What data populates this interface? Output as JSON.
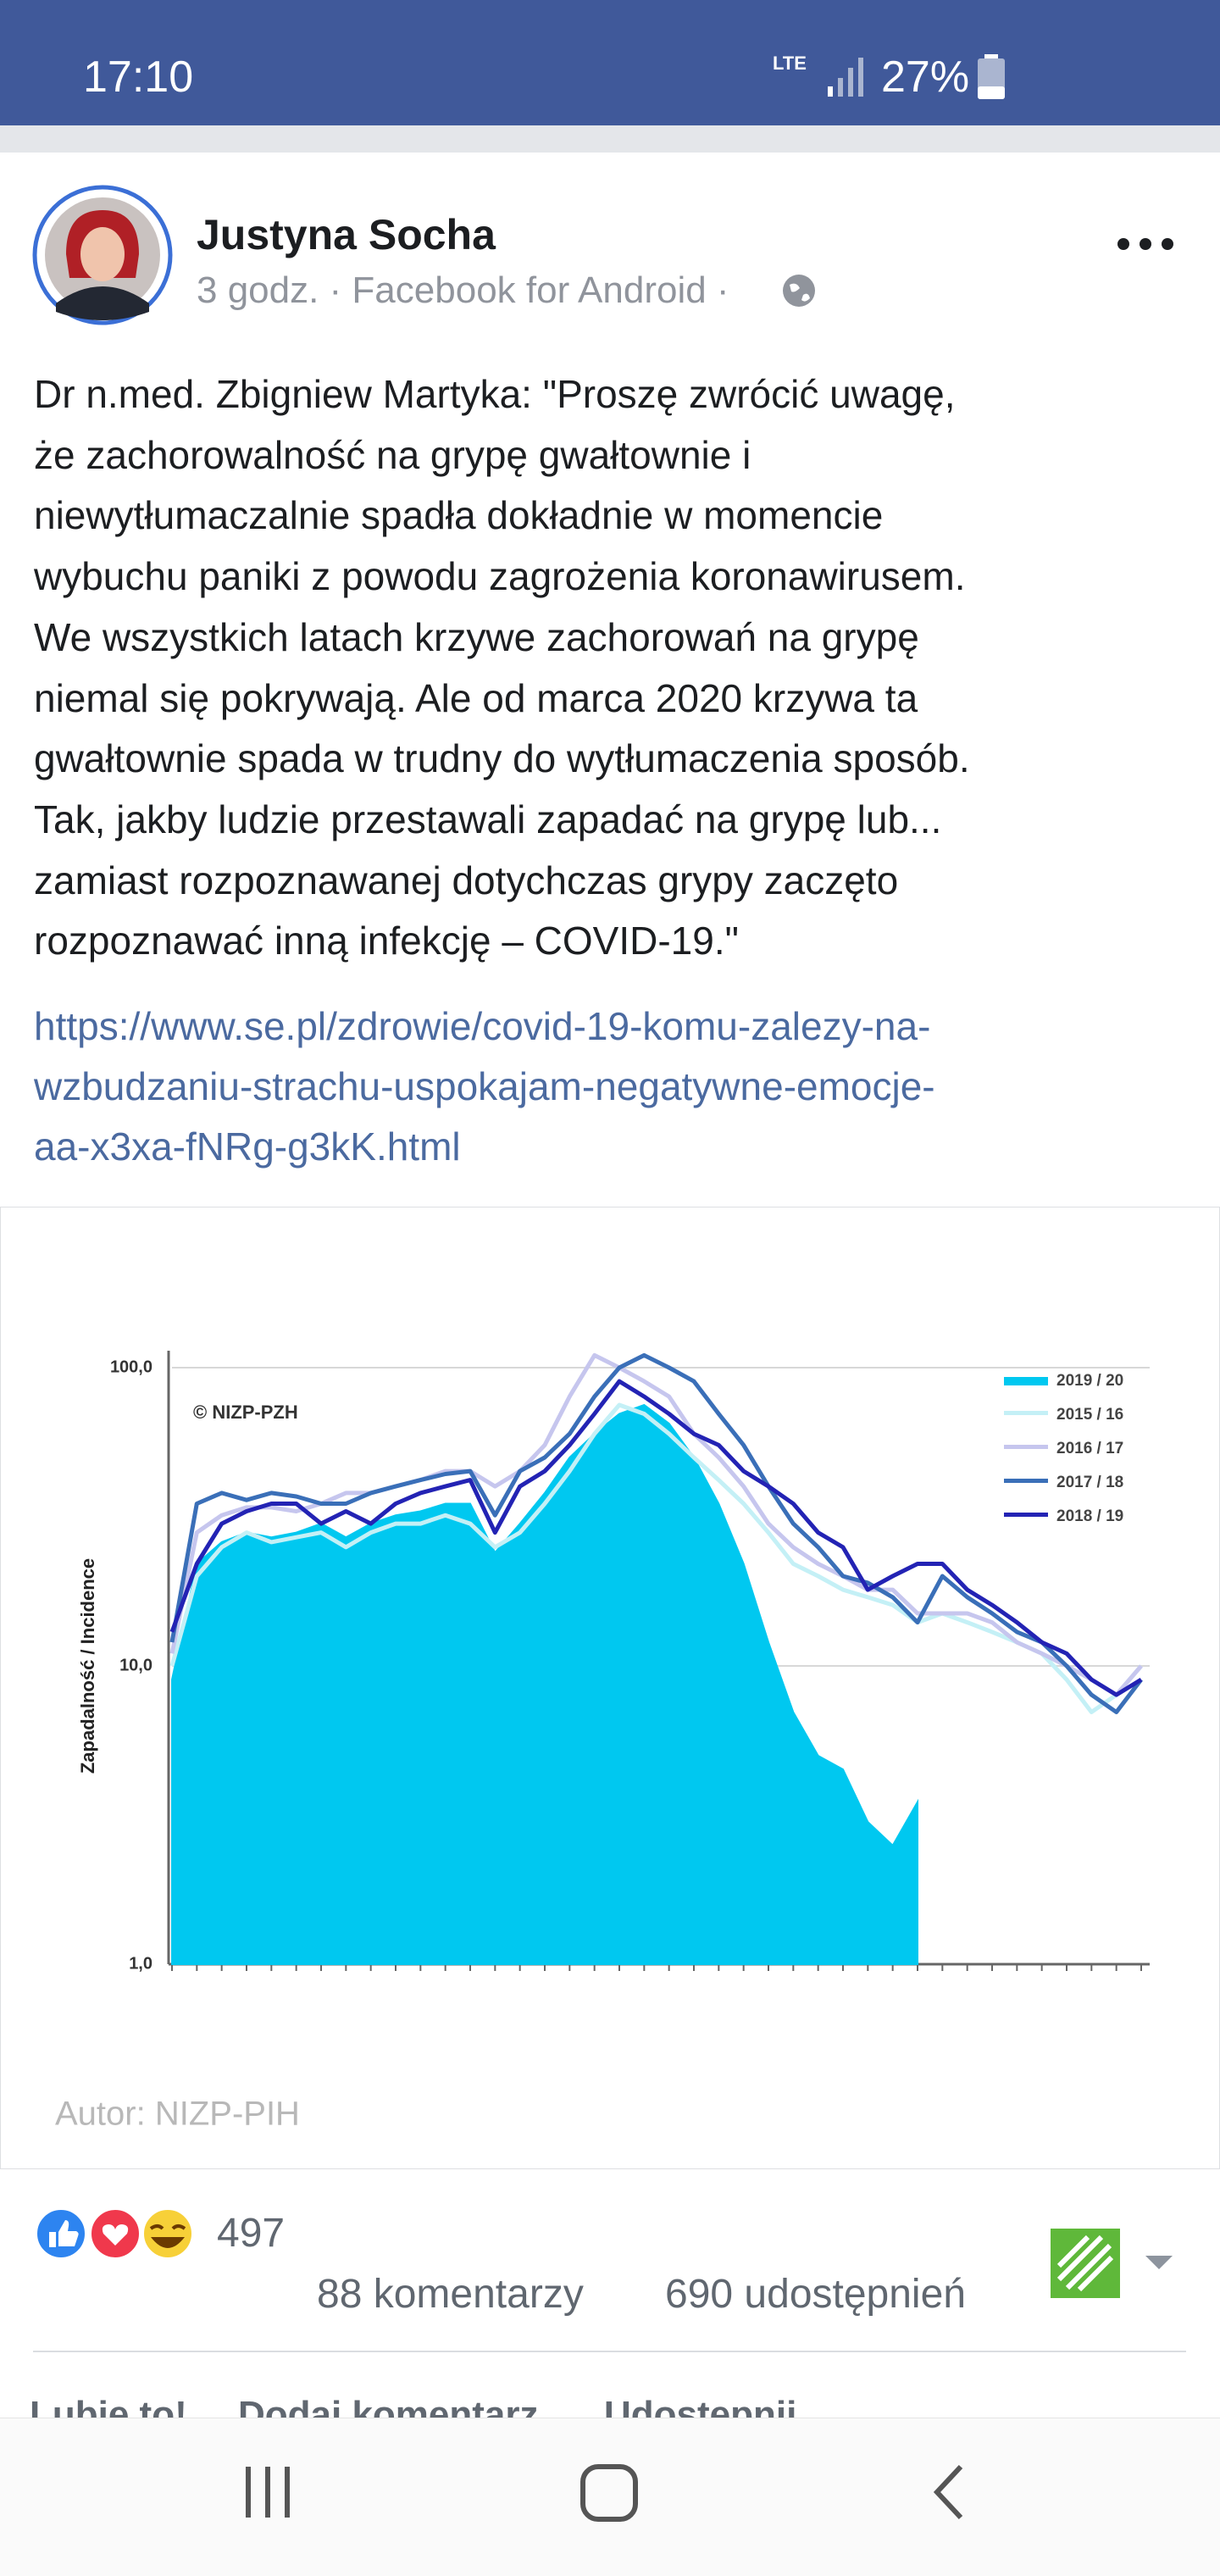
{
  "status_bar": {
    "time": "17:10",
    "network": "LTE",
    "battery": "27%"
  },
  "post": {
    "author": "Justyna Socha",
    "meta": "3 godz. · Facebook for Android ·",
    "text_lines": [
      "Dr n.med. Zbigniew Martyka: \"Proszę zwrócić uwagę,",
      "że zachorowalność na grypę gwałtownie i",
      "niewytłumaczalnie spadła dokładnie w momencie",
      "wybuchu paniki z powodu zagrożenia koronawirusem.",
      "We wszystkich latach krzywe zachorowań na grypę",
      "niemal się pokrywają. Ale od marca 2020 krzywa ta",
      "gwałtownie spada w trudny do wytłumaczenia sposób.",
      "Tak, jakby ludzie przestawali zapadać na grypę lub...",
      "zamiast rozpoznawanej dotychczas grypy zaczęto",
      "rozpoznawać inną infekcję – COVID-19.\""
    ],
    "link_lines": [
      "https://www.se.pl/zdrowie/covid-19-komu-zalezy-na-",
      "wzbudzaniu-strachu-uspokajam-negatywne-emocje-",
      "aa-x3xa-fNRg-g3kK.html"
    ]
  },
  "chart_data": {
    "type": "line",
    "log_y": true,
    "ylabel": "Zapadalność / Incidence",
    "watermark": "© NIZP-PZH",
    "credit": "Autor: NIZP-PIH",
    "categories": [
      null,
      null,
      null,
      null,
      null,
      null,
      null,
      null,
      null,
      null,
      null,
      null,
      null,
      null,
      null,
      null,
      null,
      null,
      null,
      null,
      null,
      null,
      null,
      null,
      null,
      null,
      null,
      null,
      null,
      null,
      null,
      null,
      null,
      null,
      null,
      null,
      null,
      null,
      null,
      null
    ],
    "ylim": [
      1,
      100
    ],
    "yticks": [
      {
        "value": 1,
        "label": "1,0"
      },
      {
        "value": 10,
        "label": "10,0"
      },
      {
        "value": 100,
        "label": "100,0"
      }
    ],
    "grid": true,
    "legend": "upper right",
    "series": [
      {
        "name": "2019 / 20",
        "color": "#00c8f0",
        "fill": true,
        "values": [
          9,
          22,
          26,
          28,
          27,
          28,
          30,
          27,
          30,
          32,
          33,
          35,
          35,
          24,
          30,
          38,
          50,
          60,
          70,
          75,
          65,
          50,
          35,
          22,
          12,
          7,
          5,
          4.5,
          3,
          2.5,
          3.5,
          null,
          null,
          null,
          null,
          null,
          null,
          null,
          null,
          null
        ]
      },
      {
        "name": "2015 / 16",
        "color": "#c4f0f6",
        "fill": false,
        "values": [
          10,
          20,
          25,
          28,
          26,
          27,
          28,
          25,
          28,
          30,
          30,
          32,
          30,
          25,
          28,
          35,
          45,
          60,
          75,
          70,
          60,
          50,
          42,
          35,
          28,
          22,
          20,
          18,
          17,
          16,
          14,
          15,
          14,
          13,
          12,
          11,
          9,
          7,
          8,
          10
        ]
      },
      {
        "name": "2016 / 17",
        "color": "#c6c6ee",
        "fill": false,
        "values": [
          11,
          28,
          32,
          34,
          34,
          33,
          35,
          38,
          38,
          40,
          42,
          45,
          45,
          40,
          45,
          55,
          80,
          110,
          100,
          90,
          80,
          60,
          50,
          40,
          30,
          25,
          22,
          20,
          18,
          18,
          15,
          15,
          15,
          14,
          12,
          11,
          10,
          9,
          8,
          10
        ]
      },
      {
        "name": "2017 / 18",
        "color": "#3a6fb8",
        "fill": false,
        "values": [
          12,
          35,
          38,
          36,
          38,
          37,
          35,
          35,
          38,
          40,
          42,
          44,
          45,
          32,
          45,
          50,
          60,
          80,
          100,
          110,
          100,
          90,
          70,
          55,
          40,
          30,
          25,
          20,
          19,
          17,
          14,
          20,
          17,
          15,
          13,
          12,
          10,
          8,
          7,
          9
        ]
      },
      {
        "name": "2018 / 19",
        "color": "#2323b4",
        "fill": false,
        "values": [
          13,
          22,
          30,
          33,
          35,
          35,
          30,
          33,
          30,
          35,
          38,
          40,
          42,
          28,
          40,
          45,
          55,
          70,
          90,
          80,
          70,
          60,
          55,
          45,
          40,
          35,
          28,
          25,
          18,
          20,
          22,
          22,
          18,
          16,
          14,
          12,
          11,
          9,
          8,
          9
        ]
      }
    ]
  },
  "reactions": {
    "count": 497,
    "comments": "88 komentarzy",
    "shares": "690 udostępnień"
  },
  "actions": [
    "Lubię to!",
    "Dodaj komentarz",
    "Udostępnij"
  ]
}
